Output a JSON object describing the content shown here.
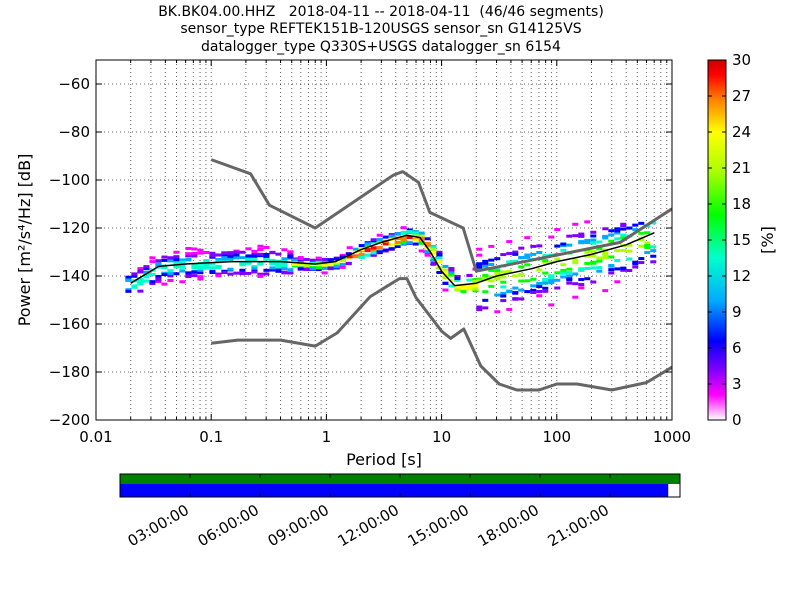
{
  "chart_data": {
    "type": "heatmap",
    "title_lines": [
      "BK.BK04.00.HHZ   2018-04-11 -- 2018-04-11  (46/46 segments)",
      "sensor_type REFTEK151B-120USGS sensor_sn G14125VS",
      "datalogger_type Q330S+USGS datalogger_sn 6154"
    ],
    "xlabel": "Period [s]",
    "ylabel": "Power [m²/s⁴/Hz] [dB]",
    "x_scale": "log",
    "xlim": [
      0.01,
      1000
    ],
    "ylim": [
      -200,
      -50
    ],
    "x_ticks": [
      0.01,
      0.1,
      1,
      10,
      100,
      1000
    ],
    "x_tick_labels": [
      "0.01",
      "0.1",
      "1",
      "10",
      "100",
      "1000"
    ],
    "y_ticks": [
      -200,
      -180,
      -160,
      -140,
      -120,
      -100,
      -80,
      -60
    ],
    "y_tick_labels": [
      "−200",
      "−180",
      "−160",
      "−140",
      "−120",
      "−100",
      "−80",
      "−60"
    ],
    "grid": true,
    "colorbar": {
      "label": "[%]",
      "range": [
        0,
        30
      ],
      "ticks": [
        0,
        3,
        6,
        9,
        12,
        15,
        18,
        21,
        24,
        27,
        30
      ],
      "tick_labels": [
        "0",
        "3",
        "6",
        "9",
        "12",
        "15",
        "18",
        "21",
        "24",
        "27",
        "30"
      ],
      "colors": [
        "#ffffff",
        "#ff00ff",
        "#8000ff",
        "#0000ff",
        "#00aaff",
        "#00ffcc",
        "#00ff00",
        "#aaff00",
        "#ffff00",
        "#ff8000",
        "#ff0000",
        "#cc0000"
      ]
    },
    "noise_models": [
      {
        "name": "NHNM",
        "color": "#666666",
        "points": [
          [
            0.1,
            -91.5
          ],
          [
            0.22,
            -97.4
          ],
          [
            0.32,
            -110.5
          ],
          [
            0.8,
            -120
          ],
          [
            3.8,
            -98
          ],
          [
            4.6,
            -96.5
          ],
          [
            6.3,
            -101
          ],
          [
            7.9,
            -113.5
          ],
          [
            15.4,
            -120
          ],
          [
            20,
            -138
          ],
          [
            354.8,
            -126
          ],
          [
            1000,
            -112
          ]
        ]
      },
      {
        "name": "NLNM",
        "color": "#666666",
        "points": [
          [
            0.1,
            -168
          ],
          [
            0.17,
            -166.7
          ],
          [
            0.4,
            -166.7
          ],
          [
            0.8,
            -169.2
          ],
          [
            1.24,
            -163.7
          ],
          [
            2.4,
            -148.6
          ],
          [
            4.3,
            -141.1
          ],
          [
            5,
            -141.1
          ],
          [
            6,
            -149
          ],
          [
            10,
            -163
          ],
          [
            12,
            -166
          ],
          [
            15.6,
            -162.1
          ],
          [
            21.9,
            -177.5
          ],
          [
            31.6,
            -185
          ],
          [
            45,
            -187.5
          ],
          [
            70,
            -187.5
          ],
          [
            100,
            -185
          ],
          [
            150,
            -185
          ],
          [
            300,
            -187.5
          ],
          [
            600,
            -184.4
          ],
          [
            1000,
            -178
          ]
        ]
      }
    ],
    "mode_curve": {
      "name": "mode",
      "color": "#000000",
      "points": [
        [
          0.02,
          -143
        ],
        [
          0.035,
          -136
        ],
        [
          0.06,
          -135
        ],
        [
          0.15,
          -134
        ],
        [
          0.4,
          -134
        ],
        [
          0.8,
          -135
        ],
        [
          1.2,
          -134
        ],
        [
          2,
          -129
        ],
        [
          3,
          -126
        ],
        [
          5,
          -123
        ],
        [
          6.5,
          -124
        ],
        [
          8,
          -130
        ],
        [
          10,
          -138
        ],
        [
          13,
          -144
        ],
        [
          20,
          -143
        ],
        [
          30,
          -140
        ],
        [
          60,
          -137
        ],
        [
          100,
          -134
        ],
        [
          200,
          -131
        ],
        [
          400,
          -127
        ],
        [
          700,
          -122
        ]
      ]
    },
    "density_bands": [
      {
        "period_range": [
          0.018,
          0.5
        ],
        "power_range": [
          -146,
          -124
        ],
        "peak_percent": 14
      },
      {
        "period_range": [
          0.5,
          1.5
        ],
        "power_range": [
          -140,
          -130
        ],
        "peak_percent": 20
      },
      {
        "period_range": [
          1.5,
          8
        ],
        "power_range": [
          -132,
          -118
        ],
        "peak_percent": 26
      },
      {
        "period_range": [
          8,
          20
        ],
        "power_range": [
          -146,
          -126
        ],
        "peak_percent": 22
      },
      {
        "period_range": [
          20,
          700
        ],
        "power_range": [
          -164,
          -116
        ],
        "peak_percent": 18
      }
    ]
  },
  "timeline": {
    "labels": [
      "03:00:00",
      "06:00:00",
      "09:00:00",
      "12:00:00",
      "15:00:00",
      "18:00:00",
      "21:00:00"
    ],
    "data_coverage_fraction": 0.979,
    "top_color": "#008000",
    "bottom_color": "#0000ff"
  }
}
